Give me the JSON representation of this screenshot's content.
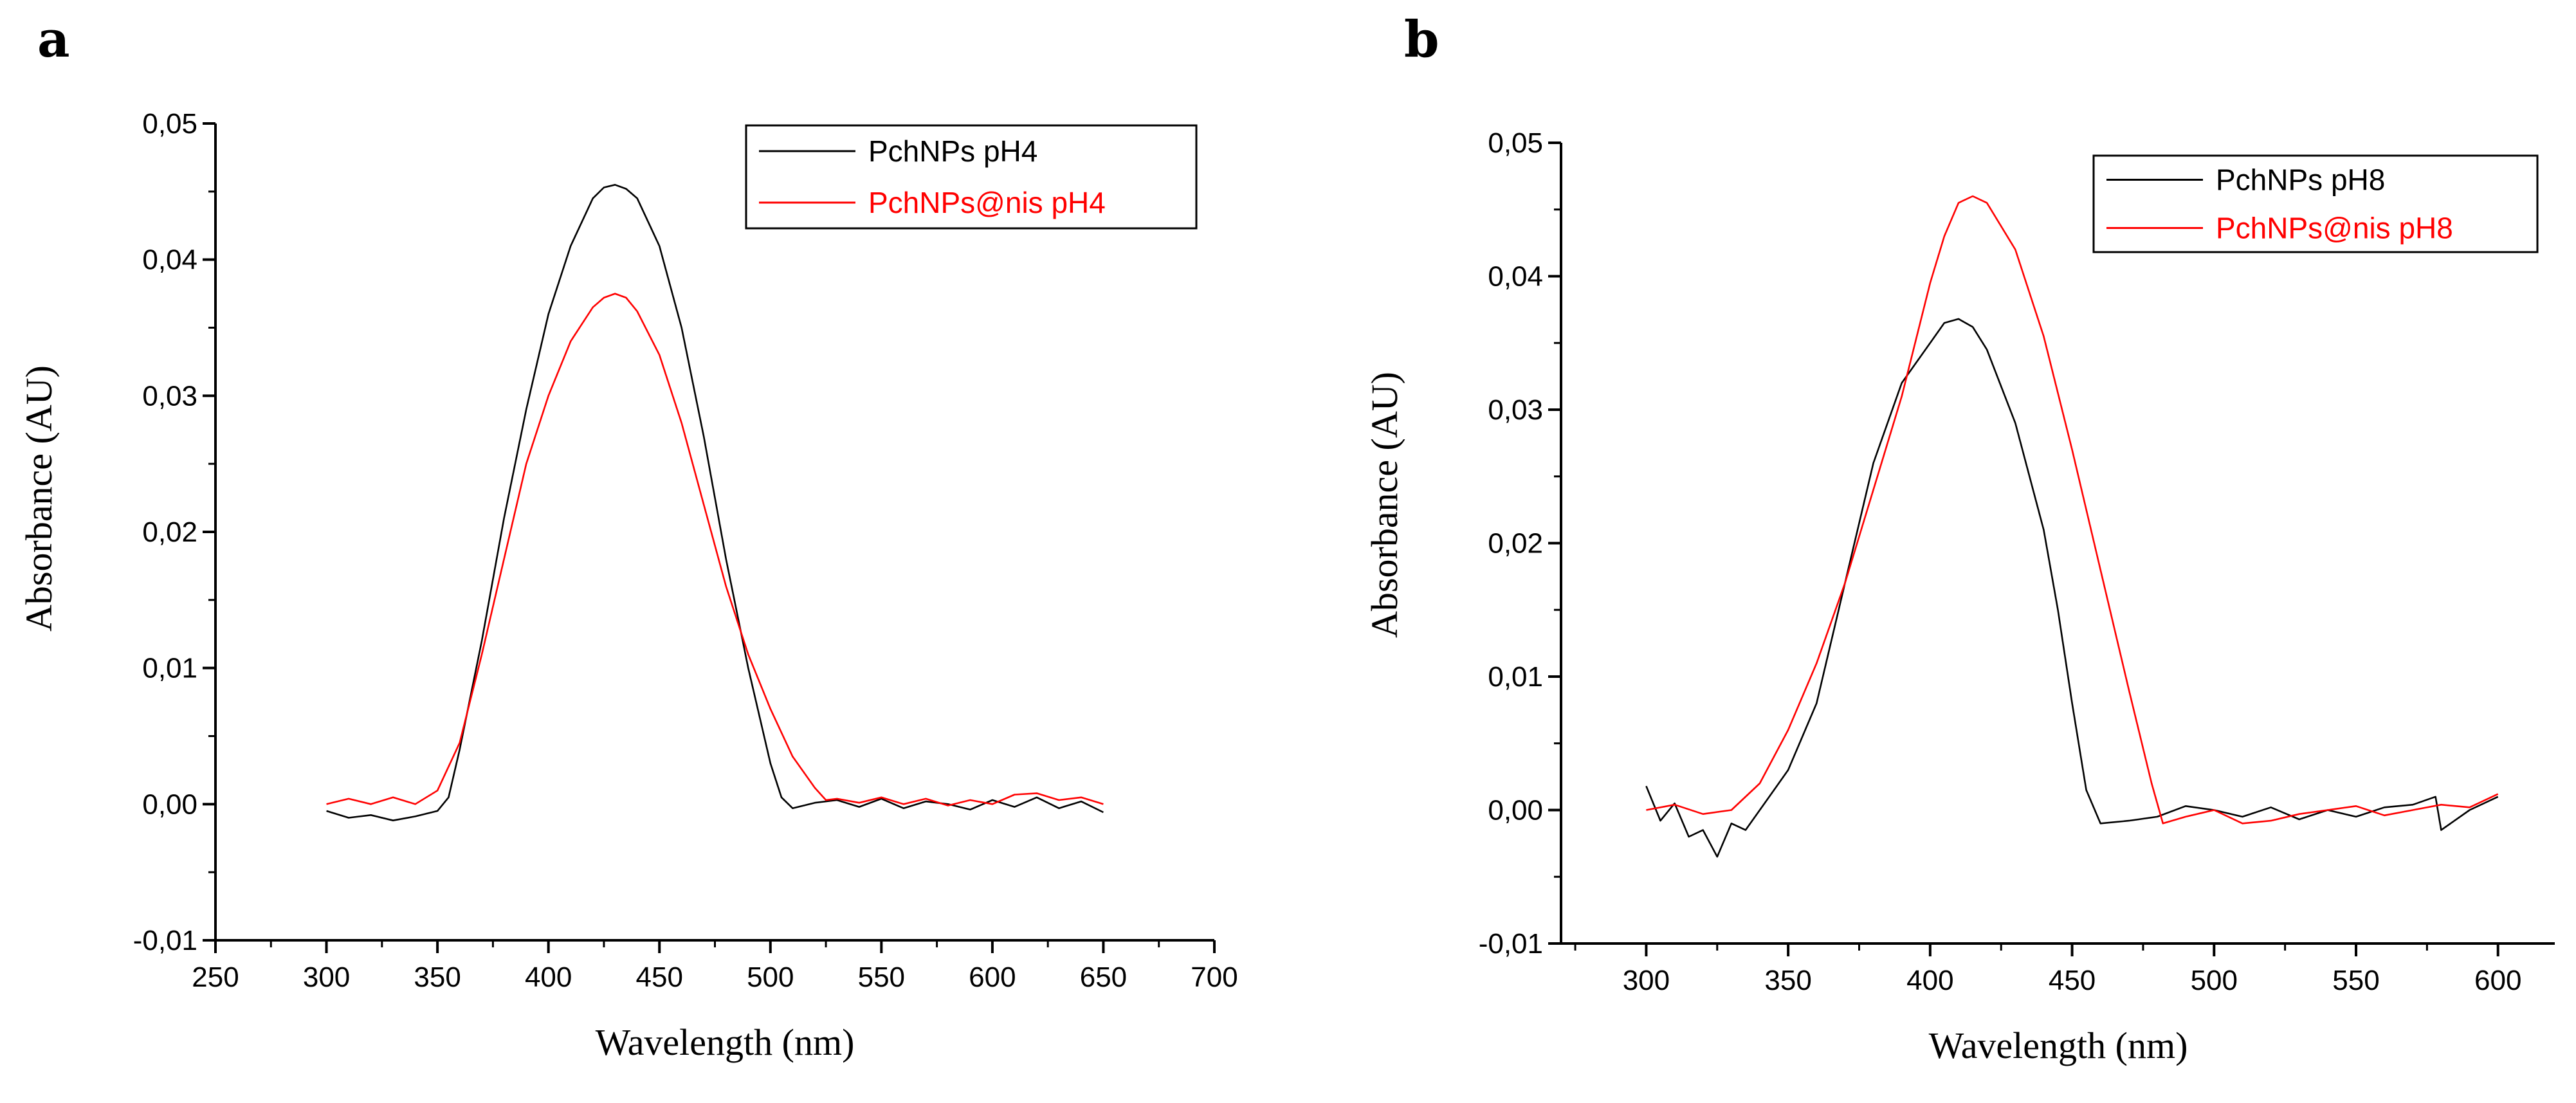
{
  "chart_data": [
    {
      "panel": "a",
      "type": "line",
      "title": "",
      "xlabel": "Wavelength (nm)",
      "ylabel": "Absorbance (AU)",
      "xlim": [
        250,
        700
      ],
      "ylim": [
        -0.01,
        0.05
      ],
      "xticks": [
        250,
        300,
        350,
        400,
        450,
        500,
        550,
        600,
        650,
        700
      ],
      "xtick_labels": [
        "250",
        "300",
        "350",
        "400",
        "450",
        "500",
        "550",
        "600",
        "650",
        "700"
      ],
      "yticks": [
        -0.01,
        0.0,
        0.01,
        0.02,
        0.03,
        0.04,
        0.05
      ],
      "ytick_labels": [
        "-0,01",
        "0,00",
        "0,01",
        "0,02",
        "0,03",
        "0,04",
        "0,05"
      ],
      "legend_position": "top-right",
      "series": [
        {
          "name": "PchNPs pH4",
          "color": "#000000",
          "x": [
            300,
            310,
            320,
            330,
            340,
            350,
            355,
            360,
            370,
            380,
            390,
            400,
            410,
            420,
            425,
            430,
            435,
            440,
            450,
            460,
            470,
            480,
            490,
            500,
            505,
            510,
            520,
            530,
            540,
            550,
            560,
            570,
            580,
            590,
            600,
            610,
            620,
            630,
            640,
            650
          ],
          "y": [
            -0.0005,
            -0.001,
            -0.0008,
            -0.0012,
            -0.0009,
            -0.0005,
            0.0005,
            0.004,
            0.012,
            0.021,
            0.029,
            0.036,
            0.041,
            0.0445,
            0.0453,
            0.0455,
            0.0452,
            0.0445,
            0.041,
            0.035,
            0.027,
            0.018,
            0.01,
            0.003,
            0.0005,
            -0.0003,
            0.0001,
            0.0003,
            -0.0002,
            0.0004,
            -0.0003,
            0.0002,
            0.0,
            -0.0004,
            0.0003,
            -0.0002,
            0.0005,
            -0.0003,
            0.0002,
            -0.0006
          ]
        },
        {
          "name": "PchNPs@nis pH4",
          "color": "#ff0000",
          "x": [
            300,
            310,
            320,
            330,
            340,
            350,
            360,
            370,
            380,
            390,
            400,
            410,
            420,
            425,
            430,
            435,
            440,
            450,
            460,
            470,
            480,
            490,
            500,
            510,
            520,
            525,
            530,
            540,
            550,
            560,
            570,
            580,
            590,
            600,
            610,
            620,
            630,
            640,
            650
          ],
          "y": [
            0.0,
            0.0004,
            0.0,
            0.0005,
            0.0,
            0.001,
            0.0045,
            0.011,
            0.018,
            0.025,
            0.03,
            0.034,
            0.0365,
            0.0372,
            0.0375,
            0.0372,
            0.0362,
            0.033,
            0.028,
            0.022,
            0.016,
            0.011,
            0.007,
            0.0035,
            0.0012,
            0.0003,
            0.0004,
            0.0001,
            0.0005,
            0.0,
            0.0004,
            -0.0001,
            0.0003,
            0.0,
            0.0007,
            0.0008,
            0.0003,
            0.0005,
            0.0
          ]
        }
      ]
    },
    {
      "panel": "b",
      "type": "line",
      "title": "",
      "xlabel": "Wavelength (nm)",
      "ylabel": "Absorbance (AU)",
      "xlim": [
        270,
        620
      ],
      "ylim": [
        -0.01,
        0.05
      ],
      "xticks": [
        300,
        350,
        400,
        450,
        500,
        550,
        600
      ],
      "xtick_labels": [
        "300",
        "350",
        "400",
        "450",
        "500",
        "550",
        "600"
      ],
      "yticks": [
        -0.01,
        0.0,
        0.01,
        0.02,
        0.03,
        0.04,
        0.05
      ],
      "ytick_labels": [
        "-0,01",
        "0,00",
        "0,01",
        "0,02",
        "0,03",
        "0,04",
        "0,05"
      ],
      "legend_position": "top-right",
      "series": [
        {
          "name": "PchNPs pH8",
          "color": "#000000",
          "x": [
            300,
            305,
            310,
            315,
            320,
            325,
            330,
            335,
            340,
            345,
            350,
            360,
            370,
            380,
            390,
            400,
            405,
            410,
            415,
            420,
            430,
            440,
            445,
            450,
            455,
            460,
            470,
            480,
            490,
            500,
            510,
            520,
            530,
            540,
            550,
            560,
            570,
            578,
            580,
            590,
            600
          ],
          "y": [
            0.0018,
            -0.0008,
            0.0005,
            -0.002,
            -0.0015,
            -0.0035,
            -0.001,
            -0.0015,
            0.0,
            0.0015,
            0.003,
            0.008,
            0.017,
            0.026,
            0.032,
            0.035,
            0.0365,
            0.0368,
            0.0362,
            0.0345,
            0.029,
            0.021,
            0.015,
            0.008,
            0.0015,
            -0.001,
            -0.0008,
            -0.0005,
            0.0003,
            0.0,
            -0.0005,
            0.0002,
            -0.0007,
            0.0,
            -0.0005,
            0.0002,
            0.0004,
            0.001,
            -0.0015,
            0.0,
            0.001
          ]
        },
        {
          "name": "PchNPs@nis pH8",
          "color": "#ff0000",
          "x": [
            300,
            310,
            320,
            330,
            340,
            350,
            360,
            370,
            380,
            390,
            400,
            405,
            410,
            415,
            420,
            430,
            440,
            450,
            460,
            470,
            478,
            482,
            490,
            500,
            510,
            520,
            530,
            540,
            550,
            560,
            570,
            580,
            590,
            600
          ],
          "y": [
            0.0,
            0.0004,
            -0.0003,
            0.0,
            0.002,
            0.006,
            0.011,
            0.017,
            0.024,
            0.031,
            0.0395,
            0.043,
            0.0455,
            0.046,
            0.0455,
            0.042,
            0.0355,
            0.027,
            0.018,
            0.009,
            0.002,
            -0.001,
            -0.0005,
            0.0,
            -0.001,
            -0.0008,
            -0.0003,
            0.0,
            0.0003,
            -0.0004,
            0.0,
            0.0004,
            0.0002,
            0.0012
          ]
        }
      ]
    }
  ]
}
